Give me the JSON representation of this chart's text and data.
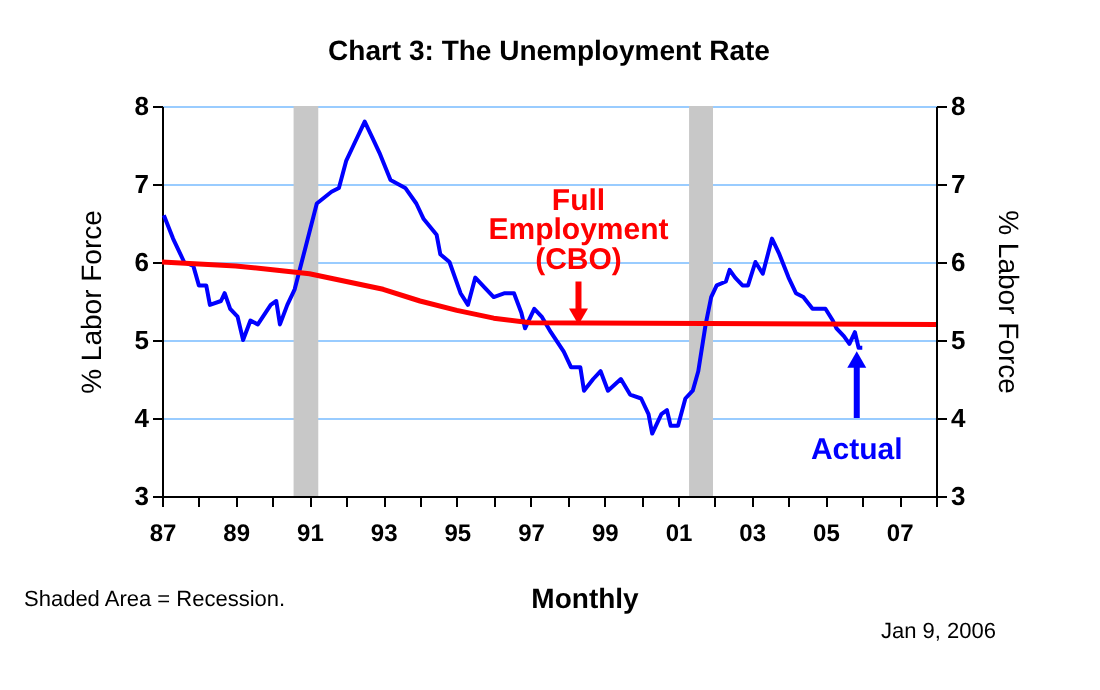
{
  "chart_data": {
    "type": "line",
    "title": "Chart 3: The Unemployment Rate",
    "xlabel": "Monthly",
    "ylabel": "% Labor Force",
    "y2label": "% Labor Force",
    "series": [
      {
        "color": "#0000ff",
        "x": [
          1987.05,
          1987.3,
          1987.6,
          1987.85,
          1988.0,
          1988.2,
          1988.3,
          1988.6,
          1988.7,
          1988.85,
          1989.05,
          1989.2,
          1989.4,
          1989.6,
          1989.95,
          1990.1,
          1990.2,
          1990.4,
          1990.6,
          1990.9,
          1991.2,
          1991.6,
          1991.8,
          1992.0,
          1992.2,
          1992.5,
          1992.7,
          1992.9,
          1993.2,
          1993.6,
          1993.9,
          1994.1,
          1994.45,
          1994.55,
          1994.8,
          1995.1,
          1995.3,
          1995.5,
          1995.8,
          1996.0,
          1996.3,
          1996.55,
          1996.75,
          1996.85,
          1997.1,
          1997.3,
          1997.55,
          1997.9,
          1998.1,
          1998.35,
          1998.45,
          1998.7,
          1998.9,
          1999.1,
          1999.45,
          1999.7,
          2000.0,
          2000.2,
          2000.3,
          2000.55,
          2000.7,
          2000.8,
          2001.0,
          2001.2,
          2001.4,
          2001.55,
          2001.75,
          2001.9,
          2002.05,
          2002.3,
          2002.4,
          2002.55,
          2002.75,
          2002.9,
          2003.1,
          2003.3,
          2003.55,
          2003.75,
          2004.0,
          2004.2,
          2004.4,
          2004.65,
          2005.0,
          2005.2,
          2005.3,
          2005.5,
          2005.65,
          2005.8,
          2005.9,
          2006.0
        ],
        "values": [
          6.6,
          6.3,
          6.0,
          5.95,
          5.7,
          5.7,
          5.45,
          5.5,
          5.6,
          5.4,
          5.3,
          5.0,
          5.25,
          5.2,
          5.45,
          5.5,
          5.2,
          5.45,
          5.65,
          6.2,
          6.75,
          6.9,
          6.95,
          7.3,
          7.5,
          7.8,
          7.6,
          7.4,
          7.05,
          6.95,
          6.75,
          6.55,
          6.35,
          6.1,
          6.0,
          5.6,
          5.45,
          5.8,
          5.65,
          5.55,
          5.6,
          5.6,
          5.35,
          5.15,
          5.4,
          5.3,
          5.1,
          4.85,
          4.65,
          4.65,
          4.35,
          4.5,
          4.6,
          4.35,
          4.5,
          4.3,
          4.25,
          4.05,
          3.8,
          4.05,
          4.1,
          3.9,
          3.9,
          4.25,
          4.35,
          4.6,
          5.2,
          5.55,
          5.7,
          5.75,
          5.9,
          5.8,
          5.7,
          5.7,
          6.0,
          5.85,
          6.3,
          6.1,
          5.8,
          5.6,
          5.55,
          5.4,
          5.4,
          5.25,
          5.15,
          5.05,
          4.95,
          5.1,
          4.9,
          4.9
        ]
      },
      {
        "color": "#ff0000",
        "x": [
          1987,
          1989,
          1990,
          1991,
          1992,
          1993,
          1994,
          1995,
          1996,
          1997,
          2008
        ],
        "values": [
          6.0,
          5.95,
          5.9,
          5.85,
          5.75,
          5.65,
          5.5,
          5.38,
          5.28,
          5.22,
          5.2
        ]
      }
    ],
    "xlim": [
      1987,
      2008
    ],
    "xticks": [
      {
        "value": 1987,
        "label": "87"
      },
      {
        "value": 1988,
        "label": null
      },
      {
        "value": 1989,
        "label": "89"
      },
      {
        "value": 1990,
        "label": null
      },
      {
        "value": 1991,
        "label": "91"
      },
      {
        "value": 1992,
        "label": null
      },
      {
        "value": 1993,
        "label": "93"
      },
      {
        "value": 1994,
        "label": null
      },
      {
        "value": 1995,
        "label": "95"
      },
      {
        "value": 1996,
        "label": null
      },
      {
        "value": 1997,
        "label": "97"
      },
      {
        "value": 1998,
        "label": null
      },
      {
        "value": 1999,
        "label": "99"
      },
      {
        "value": 2000,
        "label": null
      },
      {
        "value": 2001,
        "label": "01"
      },
      {
        "value": 2002,
        "label": null
      },
      {
        "value": 2003,
        "label": "03"
      },
      {
        "value": 2004,
        "label": null
      },
      {
        "value": 2005,
        "label": "05"
      },
      {
        "value": 2006,
        "label": null
      },
      {
        "value": 2007,
        "label": "07"
      },
      {
        "value": 2008,
        "label": null
      }
    ],
    "ylim": [
      3,
      8
    ],
    "yticks": [
      3,
      4,
      5,
      6,
      7,
      8
    ],
    "y2lim": [
      3,
      8
    ],
    "y2ticks": [
      3,
      4,
      5,
      6,
      7,
      8
    ],
    "grid": "y",
    "bands": [
      {
        "axis": "x",
        "from": 1990.57,
        "to": 1991.24,
        "color": "#c8c8c8"
      },
      {
        "axis": "x",
        "from": 2001.3,
        "to": 2001.95,
        "color": "#c8c8c8"
      }
    ],
    "annotations": [
      {
        "text": "Full Employment (CBO)",
        "x": 1998.3,
        "y": 5.2
      },
      {
        "text": "Actual",
        "x": 2005.85,
        "y": 4.85
      },
      "Shaded Area = Recession.",
      "Jan 9, 2006"
    ]
  }
}
